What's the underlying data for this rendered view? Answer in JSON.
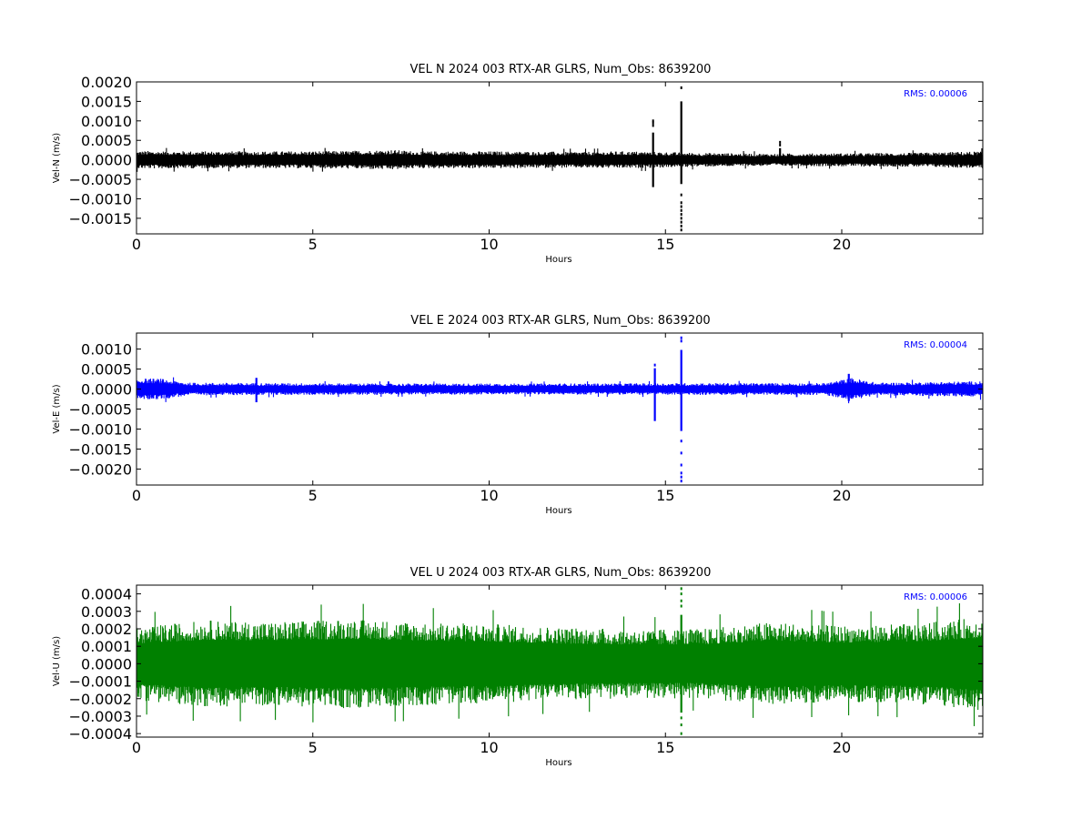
{
  "chart_data": [
    {
      "type": "line",
      "title": "VEL N 2024 003 RTX-AR  GLRS, Num_Obs: 8639200",
      "xlabel": "Hours",
      "ylabel": "Vel-N (m/s)",
      "xlim": [
        0,
        24
      ],
      "ylim": [
        -0.0019,
        0.002
      ],
      "xticks": [
        "0",
        "5",
        "10",
        "15",
        "20"
      ],
      "yticks": [
        "0.0020",
        "0.0015",
        "0.0010",
        "0.0005",
        "0.0000",
        "−0.0005",
        "−0.0010",
        "−0.0015"
      ],
      "ytick_values": [
        0.002,
        0.0015,
        0.001,
        0.0005,
        0.0,
        -0.0005,
        -0.001,
        -0.0015
      ],
      "rms_text": "RMS:  0.00006",
      "color": "#000000",
      "noise_envelope": {
        "x": [
          0,
          2,
          4,
          6,
          7.2,
          8,
          10,
          12,
          14,
          16,
          18,
          20,
          22,
          24
        ],
        "y": [
          0.00023,
          0.00022,
          0.00022,
          0.00023,
          0.00026,
          0.00022,
          0.00022,
          0.00021,
          0.00022,
          0.00018,
          0.00016,
          0.00017,
          0.00018,
          0.00022
        ]
      },
      "spikes": [
        {
          "x": 14.65,
          "ymin": -0.0007,
          "ymax": 0.0007,
          "outliers": [
            0.00088,
            0.00095,
            0.001
          ]
        },
        {
          "x": 15.45,
          "ymin": -0.00062,
          "ymax": 0.0015,
          "outliers": [
            0.00185,
            -0.0009,
            -0.0011,
            -0.0012,
            -0.0013,
            -0.0014,
            -0.0015,
            -0.0016,
            -0.0017,
            -0.0018
          ]
        },
        {
          "x": 18.25,
          "ymin": -0.0001,
          "ymax": 0.0003,
          "outliers": [
            0.00038,
            0.00045
          ]
        }
      ]
    },
    {
      "type": "line",
      "title": "VEL E 2024 003 RTX-AR  GLRS, Num_Obs: 8639200",
      "xlabel": "Hours",
      "ylabel": "Vel-E (m/s)",
      "xlim": [
        0,
        24
      ],
      "ylim": [
        -0.0024,
        0.0014
      ],
      "xticks": [
        "0",
        "5",
        "10",
        "15",
        "20"
      ],
      "yticks": [
        "0.0010",
        "0.0005",
        "0.0000",
        "−0.0005",
        "−0.0010",
        "−0.0015",
        "−0.0020"
      ],
      "ytick_values": [
        0.001,
        0.0005,
        0.0,
        -0.0005,
        -0.001,
        -0.0015,
        -0.002
      ],
      "rms_text": "RMS:  0.00004",
      "color": "#0000ff",
      "noise_envelope": {
        "x": [
          0,
          0.7,
          1.5,
          4,
          8,
          12,
          16,
          19.5,
          20.3,
          21,
          24
        ],
        "y": [
          0.00027,
          0.00026,
          0.00016,
          0.00015,
          0.00014,
          0.00014,
          0.00015,
          0.00015,
          0.00028,
          0.00016,
          0.0002
        ]
      },
      "spikes": [
        {
          "x": 3.4,
          "ymin": -0.00033,
          "ymax": 0.00028,
          "outliers": []
        },
        {
          "x": 14.7,
          "ymin": -0.0008,
          "ymax": 0.00052,
          "outliers": [
            0.0006
          ]
        },
        {
          "x": 15.45,
          "ymin": -0.00105,
          "ymax": 0.00098,
          "outliers": [
            0.0012,
            0.00128,
            -0.0013,
            -0.0016,
            -0.0019,
            -0.0021,
            -0.0022,
            -0.0023
          ]
        },
        {
          "x": 20.2,
          "ymin": -0.0003,
          "ymax": 0.00038,
          "outliers": []
        }
      ]
    },
    {
      "type": "line",
      "title": "VEL U 2024 003 RTX-AR  GLRS, Num_Obs: 8639200",
      "xlabel": "Hours",
      "ylabel": "Vel-U (m/s)",
      "xlim": [
        0,
        24
      ],
      "ylim": [
        -0.00042,
        0.00045
      ],
      "xticks": [
        "0",
        "5",
        "10",
        "15",
        "20"
      ],
      "yticks": [
        "0.0004",
        "0.0003",
        "0.0002",
        "0.0001",
        "0.0000",
        "−0.0001",
        "−0.0002",
        "−0.0003",
        "−0.0004"
      ],
      "ytick_values": [
        0.0004,
        0.0003,
        0.0002,
        0.0001,
        0.0,
        -0.0001,
        -0.0002,
        -0.0003,
        -0.0004
      ],
      "rms_text": "RMS:  0.00006",
      "color": "#008000",
      "noise_envelope": {
        "x": [
          0,
          2,
          4,
          6,
          8,
          10,
          12,
          14,
          16,
          18,
          20,
          22,
          24
        ],
        "y": [
          0.00021,
          0.00025,
          0.00024,
          0.00026,
          0.00024,
          0.00023,
          0.00021,
          0.0002,
          0.0002,
          0.00024,
          0.00022,
          0.00023,
          0.00027
        ]
      },
      "spikes": [
        {
          "x": 15.45,
          "ymin": -0.00028,
          "ymax": 0.00028,
          "outliers": [
            0.00033,
            0.00036,
            0.0004,
            0.00043,
            -0.00031,
            -0.00035,
            -0.0004
          ]
        }
      ]
    }
  ]
}
